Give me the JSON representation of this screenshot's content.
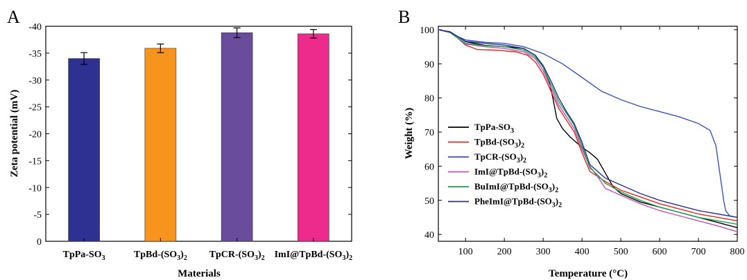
{
  "chart_data": [
    {
      "type": "bar",
      "panel": "A",
      "xlabel": "Materials",
      "ylabel": "Zeta potential (mV)",
      "ylim": [
        0,
        -40
      ],
      "yticks": [
        "0",
        "-5",
        "-10",
        "-15",
        "-20",
        "-25",
        "-30",
        "-35",
        "-40"
      ],
      "categories": [
        {
          "main": "TpPa-SO",
          "sub": "3",
          "tail": ""
        },
        {
          "main": "TpBd-(SO",
          "sub": "3",
          "tail": ")",
          "sub2": "2"
        },
        {
          "main": "TpCR-(SO",
          "sub": "3",
          "tail": ")",
          "sub2": "2"
        },
        {
          "main": "ImI@TpBd-(SO",
          "sub": "3",
          "tail": ")",
          "sub2": "2"
        }
      ],
      "values": [
        -34.0,
        -35.9,
        -38.8,
        -38.6
      ],
      "errors": [
        1.1,
        0.8,
        0.9,
        0.8
      ],
      "colors": [
        "#2e3192",
        "#f7941d",
        "#6a4c9c",
        "#ec2b8c"
      ]
    },
    {
      "type": "line",
      "panel": "B",
      "xlabel": "Temperature (°C)",
      "ylabel": "Weight (%)",
      "xlim": [
        30,
        800
      ],
      "ylim": [
        38,
        101
      ],
      "xticks": [
        "100",
        "200",
        "300",
        "400",
        "500",
        "600",
        "700",
        "800"
      ],
      "yticks": [
        "40",
        "50",
        "60",
        "70",
        "80",
        "90",
        "100"
      ],
      "legend_position": "left",
      "series": [
        {
          "name": "TpPa-SO3",
          "legend": {
            "main": "TpPa-SO",
            "sub": "3",
            "tail": ""
          },
          "color": "#000000",
          "points": [
            [
              30,
              100
            ],
            [
              60,
              99.4
            ],
            [
              80,
              98
            ],
            [
              100,
              96.5
            ],
            [
              150,
              95.4
            ],
            [
              200,
              95
            ],
            [
              250,
              94.5
            ],
            [
              280,
              92.5
            ],
            [
              300,
              89
            ],
            [
              315,
              85
            ],
            [
              325,
              80
            ],
            [
              335,
              74
            ],
            [
              350,
              71
            ],
            [
              370,
              68.5
            ],
            [
              400,
              65.5
            ],
            [
              420,
              64
            ],
            [
              440,
              62
            ],
            [
              460,
              58
            ],
            [
              480,
              54
            ],
            [
              500,
              52
            ],
            [
              550,
              49.5
            ],
            [
              600,
              48
            ],
            [
              650,
              46.5
            ],
            [
              700,
              45
            ],
            [
              750,
              43.5
            ],
            [
              800,
              42
            ]
          ]
        },
        {
          "name": "TpBd-(SO3)2",
          "legend": {
            "main": "TpBd-(SO",
            "sub": "3",
            "tail": ")",
            "sub2": "2"
          },
          "color": "#e8251f",
          "points": [
            [
              30,
              100
            ],
            [
              60,
              99.2
            ],
            [
              80,
              97.5
            ],
            [
              100,
              95.5
            ],
            [
              130,
              94.2
            ],
            [
              180,
              94
            ],
            [
              230,
              93.5
            ],
            [
              260,
              92.5
            ],
            [
              280,
              90.5
            ],
            [
              300,
              87
            ],
            [
              320,
              82
            ],
            [
              340,
              77
            ],
            [
              360,
              73.5
            ],
            [
              380,
              70
            ],
            [
              400,
              64
            ],
            [
              420,
              58.5
            ],
            [
              440,
              57
            ],
            [
              460,
              55.5
            ],
            [
              500,
              53
            ],
            [
              550,
              51
            ],
            [
              600,
              49
            ],
            [
              650,
              47.5
            ],
            [
              700,
              46
            ],
            [
              750,
              45
            ],
            [
              800,
              44
            ]
          ]
        },
        {
          "name": "TpCR-(SO3)2",
          "legend": {
            "main": "TpCR-(SO",
            "sub": "3",
            "tail": ")",
            "sub2": "2"
          },
          "color": "#3b4fc4",
          "points": [
            [
              30,
              100
            ],
            [
              60,
              99.3
            ],
            [
              80,
              98
            ],
            [
              100,
              97
            ],
            [
              150,
              96.3
            ],
            [
              200,
              96
            ],
            [
              250,
              95
            ],
            [
              300,
              93
            ],
            [
              350,
              90
            ],
            [
              400,
              86
            ],
            [
              450,
              82
            ],
            [
              500,
              79.5
            ],
            [
              550,
              77.5
            ],
            [
              600,
              76
            ],
            [
              650,
              74.5
            ],
            [
              700,
              72.5
            ],
            [
              730,
              70.5
            ],
            [
              745,
              66
            ],
            [
              755,
              58
            ],
            [
              765,
              50
            ],
            [
              770,
              47
            ],
            [
              780,
              45.5
            ],
            [
              800,
              45
            ]
          ]
        },
        {
          "name": "ImI@TpBd-(SO3)2",
          "legend": {
            "main": "ImI@TpBd-(SO",
            "sub": "3",
            "tail": ")",
            "sub2": "2"
          },
          "color": "#c04fc0",
          "points": [
            [
              30,
              100
            ],
            [
              60,
              99.2
            ],
            [
              80,
              97.5
            ],
            [
              100,
              95.8
            ],
            [
              150,
              95
            ],
            [
              200,
              94.5
            ],
            [
              250,
              93.5
            ],
            [
              280,
              91.5
            ],
            [
              300,
              88
            ],
            [
              320,
              83
            ],
            [
              340,
              78
            ],
            [
              360,
              74.5
            ],
            [
              380,
              71
            ],
            [
              400,
              65
            ],
            [
              420,
              60
            ],
            [
              440,
              57
            ],
            [
              460,
              53.5
            ],
            [
              500,
              51.5
            ],
            [
              550,
              49
            ],
            [
              600,
              47
            ],
            [
              650,
              45.5
            ],
            [
              700,
              44
            ],
            [
              750,
              42.5
            ],
            [
              800,
              40.8
            ]
          ]
        },
        {
          "name": "BuImI@TpBd-(SO3)2",
          "legend": {
            "main": "BuImI@TpBd-(SO",
            "sub": "3",
            "tail": ")",
            "sub2": "2"
          },
          "color": "#16a34a",
          "points": [
            [
              30,
              100
            ],
            [
              60,
              99.2
            ],
            [
              80,
              97.6
            ],
            [
              100,
              96
            ],
            [
              150,
              95.3
            ],
            [
              200,
              95
            ],
            [
              250,
              94
            ],
            [
              280,
              92
            ],
            [
              300,
              89
            ],
            [
              320,
              84
            ],
            [
              340,
              79
            ],
            [
              360,
              75.5
            ],
            [
              380,
              72
            ],
            [
              400,
              66
            ],
            [
              420,
              59.5
            ],
            [
              440,
              57.5
            ],
            [
              460,
              55
            ],
            [
              500,
              52.5
            ],
            [
              550,
              50
            ],
            [
              600,
              48
            ],
            [
              650,
              46.5
            ],
            [
              700,
              45
            ],
            [
              750,
              44
            ],
            [
              800,
              43
            ]
          ]
        },
        {
          "name": "PheImI@TpBd-(SO3)2",
          "legend": {
            "main": "PheImI@TpBd-(SO",
            "sub": "3",
            "tail": ")",
            "sub2": "2"
          },
          "color": "#2a2f8f",
          "points": [
            [
              30,
              100
            ],
            [
              60,
              99.3
            ],
            [
              80,
              98
            ],
            [
              100,
              96.6
            ],
            [
              150,
              96
            ],
            [
              200,
              95.5
            ],
            [
              250,
              94.5
            ],
            [
              280,
              92.5
            ],
            [
              300,
              89.5
            ],
            [
              320,
              85
            ],
            [
              340,
              80
            ],
            [
              360,
              76
            ],
            [
              380,
              72.5
            ],
            [
              400,
              67
            ],
            [
              420,
              60.5
            ],
            [
              440,
              58.5
            ],
            [
              460,
              56.5
            ],
            [
              500,
              54.5
            ],
            [
              550,
              52
            ],
            [
              600,
              50
            ],
            [
              650,
              48.5
            ],
            [
              700,
              47
            ],
            [
              750,
              46
            ],
            [
              800,
              45
            ]
          ]
        }
      ]
    }
  ]
}
